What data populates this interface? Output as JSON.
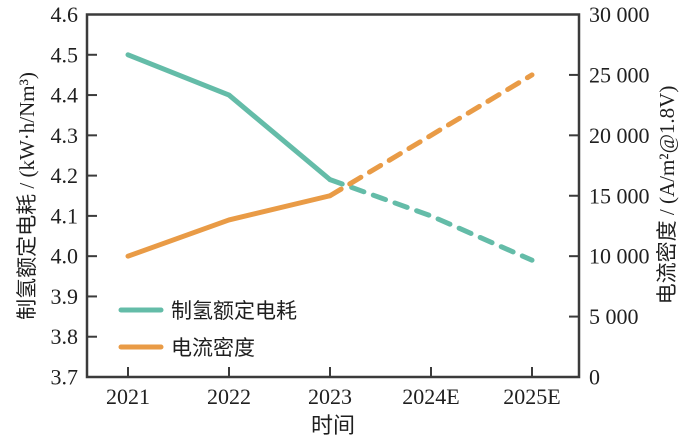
{
  "chart_data": {
    "type": "line",
    "title": "",
    "xlabel": "时间",
    "categories": [
      "2021",
      "2022",
      "2023",
      "2024E",
      "2025E"
    ],
    "left_axis": {
      "label": "制氢额定电耗 / (kW·h/Nm³)",
      "min": 3.7,
      "max": 4.6,
      "tick_step": 0.1,
      "tick_labels": [
        "3.7",
        "3.8",
        "3.9",
        "4.0",
        "4.1",
        "4.2",
        "4.3",
        "4.4",
        "4.5",
        "4.6"
      ]
    },
    "right_axis": {
      "label": "电流密度 / (A/m²@1.8V)",
      "min": 0,
      "max": 30000,
      "tick_step": 5000,
      "tick_labels": [
        "0",
        "5 000",
        "10 000",
        "15 000",
        "20 000",
        "25 000",
        "30 000"
      ]
    },
    "series": [
      {
        "name": "制氢额定电耗",
        "axis": "left",
        "color": "#64BCA8",
        "values": [
          4.5,
          4.4,
          4.19,
          4.1,
          3.99
        ],
        "dashed_from_index": 2
      },
      {
        "name": "电流密度",
        "axis": "right",
        "color": "#E99B46",
        "values": [
          10000,
          13000,
          15000,
          20000,
          25000
        ],
        "dashed_from_index": 2
      }
    ],
    "legend": {
      "position": "inside-bottom-left"
    },
    "grid": "off",
    "frame_color": "#3b3b3b",
    "text_color": "#1f1f1f"
  }
}
